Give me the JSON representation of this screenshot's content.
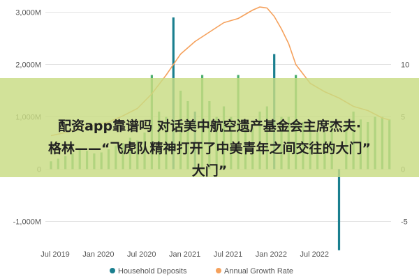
{
  "chart_data": {
    "type": "bar",
    "title": "",
    "x_ticks": [
      "Jul 2019",
      "Jan 2020",
      "Jul 2020",
      "Jan 2021",
      "Jul 2021",
      "Jan 2022",
      "Jul 2022"
    ],
    "y_left_ticks": [
      "3,000M",
      "2,000M",
      "1,000M",
      "0",
      "-1,000M"
    ],
    "y_right_ticks": [
      "10",
      "5",
      "0",
      "-5"
    ],
    "ylim_left": [
      -1300,
      3100
    ],
    "ylim_right": [
      -6.5,
      15.5
    ],
    "x_month_range": [
      0,
      48
    ],
    "grid": true,
    "legend_position": "bottom",
    "series": [
      {
        "name": "Household Deposits",
        "type": "bar",
        "color": "#1a7f8f",
        "highlight_color": "#1a7f8f",
        "x_months": [
          0,
          1,
          2,
          3,
          4,
          5,
          6,
          7,
          8,
          9,
          10,
          11,
          12,
          13,
          14,
          15,
          16,
          17,
          18,
          19,
          20,
          21,
          22,
          23,
          24,
          25,
          26,
          27,
          28,
          29,
          30,
          31,
          32,
          33,
          34,
          35,
          36,
          37,
          38,
          39,
          40,
          41,
          42,
          43,
          44,
          45,
          46,
          47
        ],
        "values": [
          150,
          200,
          250,
          300,
          400,
          350,
          300,
          320,
          380,
          450,
          500,
          600,
          550,
          700,
          1800,
          1100,
          1000,
          2900,
          1500,
          1300,
          1100,
          1800,
          1300,
          1000,
          1200,
          1000,
          1800,
          900,
          800,
          1100,
          1200,
          2200,
          1000,
          1000,
          1800,
          900,
          800,
          700,
          700,
          900,
          -1550,
          900,
          1100,
          950,
          900,
          1000,
          1000,
          950
        ],
        "highlighted": [
          0,
          0,
          0,
          0,
          0,
          0,
          0,
          0,
          0,
          0,
          0,
          0,
          0,
          0,
          0,
          0,
          0,
          1,
          0,
          0,
          1,
          0,
          0,
          0,
          0,
          0,
          0,
          0,
          0,
          0,
          0,
          1,
          0,
          0,
          0,
          0,
          0,
          0,
          0,
          0,
          1,
          0,
          0,
          0,
          0,
          0,
          0,
          0
        ]
      },
      {
        "name": "Annual Growth Rate",
        "type": "line",
        "color": "#f5a15c",
        "x_months": [
          0,
          2,
          4,
          6,
          8,
          10,
          12,
          13,
          14,
          16,
          18,
          20,
          22,
          24,
          26,
          28,
          29,
          30,
          31,
          32,
          33,
          34,
          36,
          38,
          40,
          42,
          44,
          46,
          47
        ],
        "values": [
          3.2,
          3.5,
          3.9,
          4.2,
          4.5,
          5.1,
          5.8,
          6.5,
          7.2,
          9.0,
          11.0,
          12.2,
          13.1,
          14.0,
          14.4,
          15.2,
          15.5,
          15.4,
          14.6,
          13.4,
          12.0,
          10.0,
          8.2,
          7.4,
          6.8,
          6.0,
          5.6,
          4.9,
          4.7
        ]
      }
    ]
  },
  "overlay": {
    "line1": "配资app靠谱吗 对话美中航空遗产基金会主席杰夫·",
    "line2": "格林——“飞虎队精神打开了中美青年之间交往的大门”",
    "line3": "大门”"
  },
  "legend": {
    "item1": "Household Deposits",
    "item2": "Annual Growth Rate"
  }
}
